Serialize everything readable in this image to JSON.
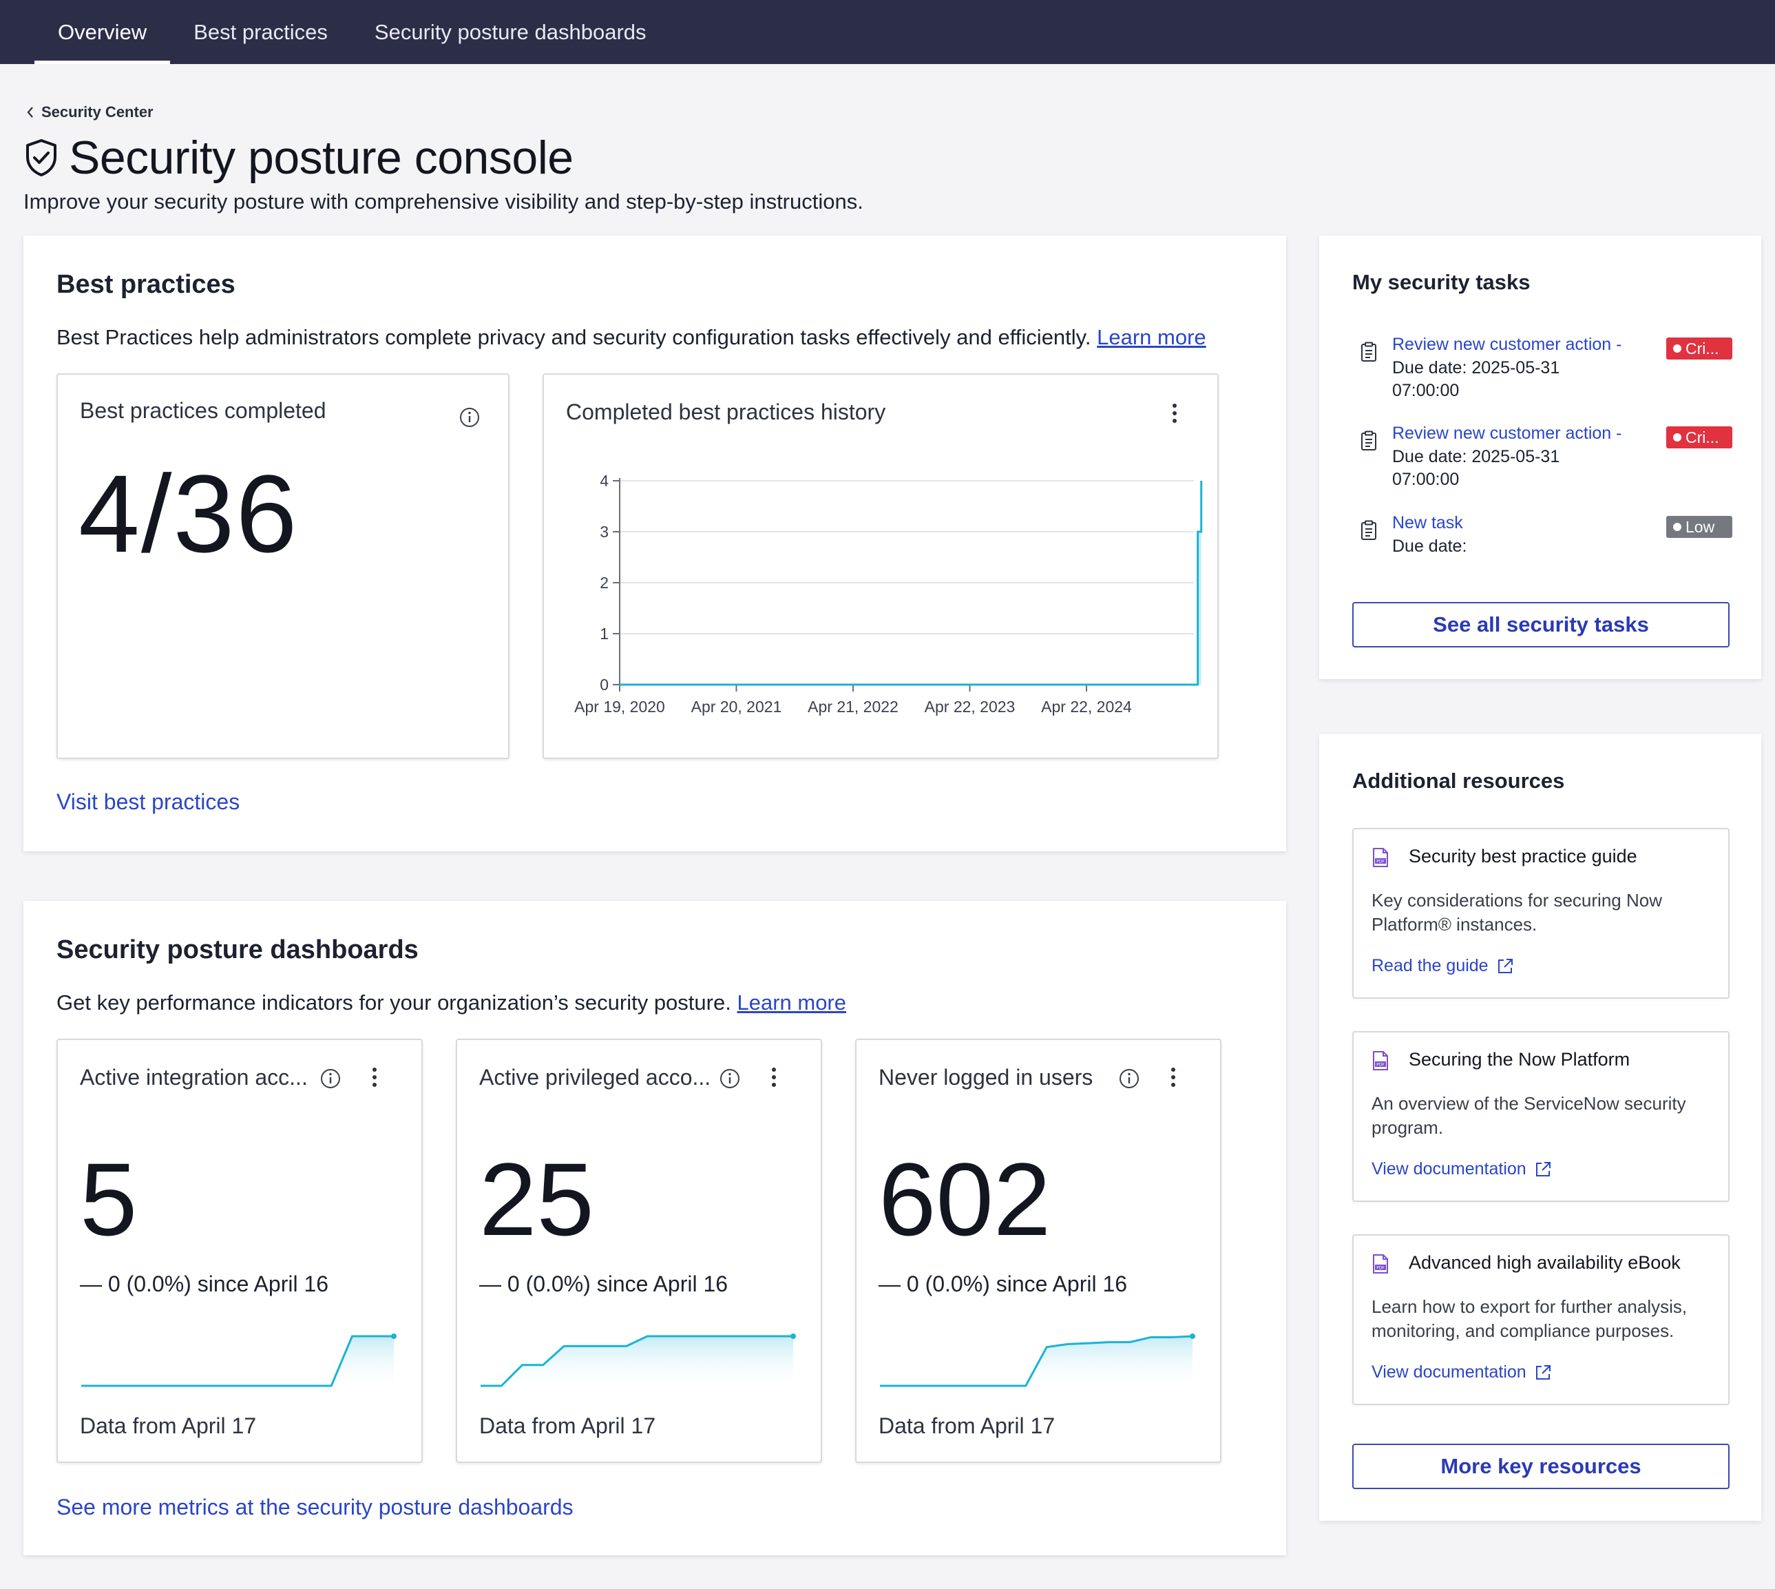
{
  "nav": {
    "tabs": [
      "Overview",
      "Best practices",
      "Security posture dashboards"
    ],
    "active_tab": "Overview"
  },
  "breadcrumb": "Security Center",
  "page": {
    "title": "Security posture console",
    "subtitle": "Improve your security posture with comprehensive visibility and step-by-step instructions."
  },
  "best_practices": {
    "heading": "Best practices",
    "description": "Best Practices help administrators complete privacy and security configuration tasks effectively and efficiently.",
    "learn_more": "Learn more",
    "completed_card": {
      "title": "Best practices completed",
      "value": "4/36"
    },
    "history_card": {
      "title": "Completed best practices history"
    },
    "visit_link": "Visit best practices"
  },
  "chart_data": {
    "type": "area",
    "title": "Completed best practices history",
    "xlabel": "",
    "ylabel": "",
    "x_tick_labels": [
      "Apr 19, 2020",
      "Apr 20, 2021",
      "Apr 21, 2022",
      "Apr 22, 2023",
      "Apr 22, 2024"
    ],
    "y_ticks": [
      0,
      1,
      2,
      3,
      4
    ],
    "ylim": [
      0,
      4
    ],
    "grid": true,
    "series": [
      {
        "x": [
          "Apr 19, 2020",
          "Apr 05, 2025",
          "Apr 06, 2025",
          "Apr 15, 2025",
          "Apr 17, 2025"
        ],
        "values": [
          0,
          0,
          3,
          3,
          4
        ]
      }
    ],
    "color": "#1bb3d6"
  },
  "dashboards": {
    "heading": "Security posture dashboards",
    "description": "Get key performance indicators for your organization’s security posture.",
    "learn_more": "Learn more",
    "kpis": [
      {
        "title": "Active integration acc...",
        "value": "5",
        "change": "0 (0.0%) since April 16",
        "footer": "Data from April 17",
        "sparkline": [
          0,
          0,
          0,
          0,
          0,
          0,
          0,
          0,
          0,
          0,
          0,
          0,
          0,
          1,
          1,
          1
        ]
      },
      {
        "title": "Active privileged acco...",
        "value": "25",
        "change": "0 (0.0%) since April 16",
        "footer": "Data from April 17",
        "sparkline": [
          0,
          0,
          0.42,
          0.42,
          0.8,
          0.8,
          0.8,
          0.8,
          1,
          1,
          1,
          1,
          1,
          1,
          1,
          1
        ]
      },
      {
        "title": "Never logged in users",
        "value": "602",
        "change": "0 (0.0%) since April 16",
        "footer": "Data from April 17",
        "sparkline": [
          0,
          0,
          0,
          0,
          0,
          0,
          0,
          0,
          0.78,
          0.84,
          0.86,
          0.88,
          0.88,
          0.98,
          0.98,
          1
        ]
      }
    ],
    "more_link": "See more metrics at the security posture dashboards"
  },
  "tasks": {
    "heading": "My security tasks",
    "items": [
      {
        "link": "Review new customer action -",
        "due": "Due date: 2025-05-31 07:00:00",
        "badge": "Cri...",
        "severity": "critical"
      },
      {
        "link": "Review new customer action -",
        "due": "Due date: 2025-05-31 07:00:00",
        "badge": "Cri...",
        "severity": "critical"
      },
      {
        "link": "New task",
        "due": "Due date:",
        "badge": "Low",
        "severity": "low"
      }
    ],
    "see_all": "See all security tasks"
  },
  "resources": {
    "heading": "Additional resources",
    "items": [
      {
        "title": "Security best practice guide",
        "desc": "Key considerations for securing Now Platform® instances.",
        "link": "Read the guide",
        "icon": "pdf-icon"
      },
      {
        "title": "Securing the Now Platform",
        "desc": "An overview of the ServiceNow security program.",
        "link": "View documentation",
        "icon": "pdf-icon"
      },
      {
        "title": "Advanced high availability eBook",
        "desc": "Learn how to export for further analysis, monitoring, and compliance purposes.",
        "link": "View documentation",
        "icon": "pdf-icon"
      }
    ],
    "more": "More key resources"
  },
  "colors": {
    "nav_bg": "#2c2e48",
    "link": "#2a45c9",
    "critical": "#e0323f",
    "low": "#75787f",
    "sparkline": "#1bb3d6"
  }
}
